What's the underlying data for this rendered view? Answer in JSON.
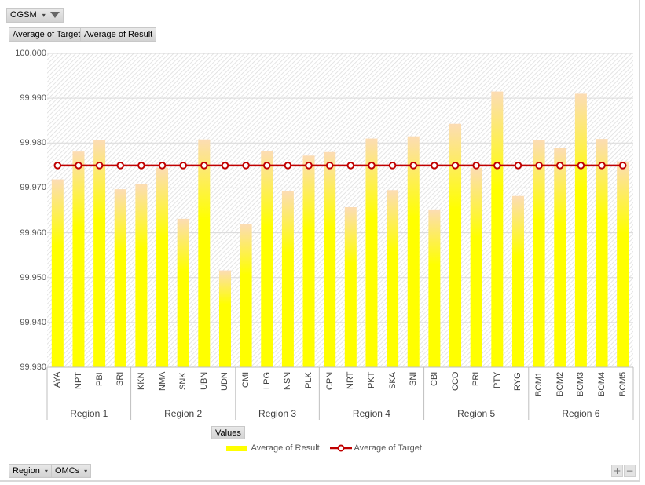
{
  "filters": {
    "report_filter": {
      "label": "OGSM",
      "icon": "filter-icon"
    },
    "value_fields": [
      "Average of Target",
      "Average of Result"
    ],
    "values_button": "Values",
    "axis_fields": [
      "Region",
      "OMCs"
    ],
    "zoom_in": "+",
    "zoom_out": "−"
  },
  "chart_data": {
    "type": "bar",
    "title": "",
    "xlabel": "",
    "ylabel": "",
    "ylim": [
      99.93,
      100.0
    ],
    "yticks": [
      "100.000",
      "99.990",
      "99.980",
      "99.970",
      "99.960",
      "99.950",
      "99.940",
      "99.930"
    ],
    "ytick_values": [
      100.0,
      99.99,
      99.98,
      99.97,
      99.96,
      99.95,
      99.94,
      99.93
    ],
    "grid": true,
    "legend_position": "bottom",
    "groups": [
      {
        "name": "Region 1",
        "categories": [
          "AYA",
          "NPT",
          "PBI",
          "SRI"
        ]
      },
      {
        "name": "Region 2",
        "categories": [
          "KKN",
          "NMA",
          "SNK",
          "UBN",
          "UDN"
        ]
      },
      {
        "name": "Region 3",
        "categories": [
          "CMI",
          "LPG",
          "NSN",
          "PLK"
        ]
      },
      {
        "name": "Region 4",
        "categories": [
          "CPN",
          "NRT",
          "PKT",
          "SKA",
          "SNI"
        ]
      },
      {
        "name": "Region 5",
        "categories": [
          "CBI",
          "CCO",
          "PRI",
          "PTY",
          "RYG"
        ]
      },
      {
        "name": "Region 6",
        "categories": [
          "BOM1",
          "BOM2",
          "BOM3",
          "BOM4",
          "BOM5"
        ]
      }
    ],
    "categories": [
      "AYA",
      "NPT",
      "PBI",
      "SRI",
      "KKN",
      "NMA",
      "SNK",
      "UBN",
      "UDN",
      "CMI",
      "LPG",
      "NSN",
      "PLK",
      "CPN",
      "NRT",
      "PKT",
      "SKA",
      "SNI",
      "CBI",
      "CCO",
      "PRI",
      "PTY",
      "RYG",
      "BOM1",
      "BOM2",
      "BOM3",
      "BOM4",
      "BOM5"
    ],
    "series": [
      {
        "name": "Average of Result",
        "type": "bar",
        "color": "#FFFF00",
        "values": [
          99.9719,
          99.9781,
          99.9806,
          99.9697,
          99.9709,
          99.9745,
          99.9631,
          99.9808,
          99.9516,
          99.9619,
          99.9783,
          99.9693,
          99.9772,
          99.978,
          99.9657,
          99.981,
          99.9695,
          99.9815,
          99.9652,
          99.9843,
          99.9745,
          99.9915,
          99.9682,
          99.9807,
          99.979,
          99.991,
          99.9809,
          99.9759
        ]
      },
      {
        "name": "Average of Target",
        "type": "line",
        "color": "#C00000",
        "values": [
          99.975,
          99.975,
          99.975,
          99.975,
          99.975,
          99.975,
          99.975,
          99.975,
          99.975,
          99.975,
          99.975,
          99.975,
          99.975,
          99.975,
          99.975,
          99.975,
          99.975,
          99.975,
          99.975,
          99.975,
          99.975,
          99.975,
          99.975,
          99.975,
          99.975,
          99.975,
          99.975,
          99.975
        ]
      }
    ]
  }
}
